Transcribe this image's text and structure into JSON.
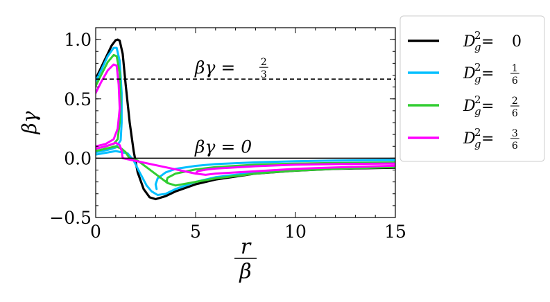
{
  "chart_data": {
    "type": "line",
    "title": "",
    "xlabel": {
      "numerator": "r",
      "denominator": "β"
    },
    "ylabel": "βγ",
    "xlim": [
      0,
      15
    ],
    "ylim": [
      -0.5,
      1.1
    ],
    "x_ticks": [
      {
        "value": 0,
        "label": "0"
      },
      {
        "value": 5,
        "label": "5"
      },
      {
        "value": 10,
        "label": "10"
      },
      {
        "value": 15,
        "label": "15"
      }
    ],
    "y_ticks": [
      {
        "value": -0.5,
        "label": "−0.5"
      },
      {
        "value": 0.0,
        "label": "0.0"
      },
      {
        "value": 0.5,
        "label": "0.5"
      },
      {
        "value": 1.0,
        "label": "1.0"
      }
    ],
    "grid": false,
    "legend_position": "outside-right",
    "reference_lines": [
      {
        "y": 0.6667,
        "style": "dashed",
        "label": {
          "prefix": "βγ = ",
          "num": "2",
          "den": "3"
        }
      },
      {
        "y": 0.0,
        "style": "solid",
        "label": {
          "prefix": "βγ = 0"
        }
      }
    ],
    "series": [
      {
        "legend": {
          "prefix": "D",
          "sub": "g",
          "sup": "2",
          "eq": " = ",
          "value": "0"
        },
        "color": "#000000",
        "points": [
          [
            0.0,
            0.67
          ],
          [
            0.2,
            0.74
          ],
          [
            0.4,
            0.81
          ],
          [
            0.6,
            0.88
          ],
          [
            0.8,
            0.95
          ],
          [
            1.0,
            0.995
          ],
          [
            1.1,
            1.0
          ],
          [
            1.2,
            0.99
          ],
          [
            1.35,
            0.88
          ],
          [
            1.5,
            0.62
          ],
          [
            1.7,
            0.3
          ],
          [
            1.9,
            0.06
          ],
          [
            2.1,
            -0.12
          ],
          [
            2.4,
            -0.26
          ],
          [
            2.7,
            -0.33
          ],
          [
            3.0,
            -0.345
          ],
          [
            3.5,
            -0.32
          ],
          [
            4.0,
            -0.28
          ],
          [
            5.0,
            -0.22
          ],
          [
            6.0,
            -0.18
          ],
          [
            8.0,
            -0.13
          ],
          [
            10.0,
            -0.105
          ],
          [
            12.0,
            -0.09
          ],
          [
            15.0,
            -0.08
          ]
        ]
      },
      {
        "legend": {
          "prefix": "D",
          "sub": "g",
          "sup": "2",
          "eq": " = ",
          "num": "1",
          "den": "6"
        },
        "color": "#00bfff",
        "points": [
          [
            0.0,
            0.65
          ],
          [
            0.3,
            0.75
          ],
          [
            0.6,
            0.86
          ],
          [
            0.9,
            0.93
          ],
          [
            1.05,
            0.93
          ],
          [
            1.2,
            0.82
          ],
          [
            1.3,
            0.55
          ],
          [
            1.3,
            0.3
          ],
          [
            1.25,
            0.15
          ],
          [
            1.0,
            0.09
          ],
          [
            0.6,
            0.07
          ],
          [
            0.0,
            0.05
          ],
          [
            0.0,
            0.03
          ],
          [
            1.0,
            0.06
          ],
          [
            1.6,
            0.04
          ],
          [
            1.9,
            -0.02
          ],
          [
            2.2,
            -0.12
          ],
          [
            2.55,
            -0.23
          ],
          [
            2.8,
            -0.28
          ],
          [
            3.1,
            -0.31
          ],
          [
            3.5,
            -0.3
          ],
          [
            4.0,
            -0.26
          ],
          [
            5.0,
            -0.2
          ],
          [
            6.0,
            -0.16
          ],
          [
            8.0,
            -0.12
          ],
          [
            10.0,
            -0.095
          ],
          [
            12.0,
            -0.083
          ],
          [
            15.0,
            -0.07
          ],
          [
            15.0,
            -0.015
          ],
          [
            12.0,
            -0.02
          ],
          [
            10.0,
            -0.025
          ],
          [
            8.0,
            -0.035
          ],
          [
            6.0,
            -0.05
          ],
          [
            5.0,
            -0.065
          ],
          [
            4.0,
            -0.09
          ],
          [
            3.5,
            -0.12
          ],
          [
            3.1,
            -0.17
          ],
          [
            3.0,
            -0.22
          ],
          [
            3.05,
            -0.26
          ]
        ]
      },
      {
        "legend": {
          "prefix": "D",
          "sub": "g",
          "sup": "2",
          "eq": " = ",
          "num": "2",
          "den": "6"
        },
        "color": "#32cd32",
        "points": [
          [
            0.0,
            0.61
          ],
          [
            0.3,
            0.71
          ],
          [
            0.6,
            0.81
          ],
          [
            0.9,
            0.87
          ],
          [
            1.05,
            0.86
          ],
          [
            1.2,
            0.72
          ],
          [
            1.25,
            0.48
          ],
          [
            1.2,
            0.3
          ],
          [
            1.1,
            0.16
          ],
          [
            0.9,
            0.12
          ],
          [
            0.5,
            0.1
          ],
          [
            0.0,
            0.08
          ],
          [
            0.0,
            0.06
          ],
          [
            0.5,
            0.08
          ],
          [
            1.0,
            0.1
          ],
          [
            1.3,
            0.08
          ],
          [
            1.5,
            0.05
          ],
          [
            1.65,
            0.01
          ],
          [
            1.7,
            0.0
          ],
          [
            2.1,
            -0.02
          ],
          [
            3.6,
            -0.21
          ],
          [
            4.0,
            -0.23
          ],
          [
            5.0,
            -0.2
          ],
          [
            6.0,
            -0.17
          ],
          [
            8.0,
            -0.13
          ],
          [
            10.0,
            -0.105
          ],
          [
            12.0,
            -0.09
          ],
          [
            15.0,
            -0.075
          ],
          [
            15.0,
            -0.035
          ],
          [
            12.0,
            -0.04
          ],
          [
            10.0,
            -0.045
          ],
          [
            8.0,
            -0.055
          ],
          [
            6.0,
            -0.075
          ],
          [
            5.0,
            -0.095
          ],
          [
            4.0,
            -0.13
          ],
          [
            3.6,
            -0.165
          ],
          [
            3.55,
            -0.19
          ],
          [
            3.6,
            -0.21
          ]
        ]
      },
      {
        "legend": {
          "prefix": "D",
          "sub": "g",
          "sup": "2",
          "eq": " = ",
          "num": "3",
          "den": "6"
        },
        "color": "#ff00ff",
        "points": [
          [
            0.0,
            0.55
          ],
          [
            0.3,
            0.65
          ],
          [
            0.6,
            0.74
          ],
          [
            0.9,
            0.79
          ],
          [
            1.05,
            0.78
          ],
          [
            1.15,
            0.62
          ],
          [
            1.2,
            0.42
          ],
          [
            1.1,
            0.25
          ],
          [
            0.9,
            0.16
          ],
          [
            0.5,
            0.12
          ],
          [
            0.0,
            0.1
          ],
          [
            0.0,
            0.08
          ],
          [
            0.5,
            0.1
          ],
          [
            1.0,
            0.13
          ],
          [
            1.2,
            0.11
          ],
          [
            1.3,
            0.06
          ],
          [
            1.35,
            0.0
          ],
          [
            5.0,
            -0.13
          ],
          [
            5.5,
            -0.14
          ],
          [
            6.0,
            -0.13
          ],
          [
            8.0,
            -0.11
          ],
          [
            10.0,
            -0.09
          ],
          [
            12.0,
            -0.078
          ],
          [
            15.0,
            -0.063
          ],
          [
            15.0,
            -0.045
          ],
          [
            12.0,
            -0.05
          ],
          [
            10.0,
            -0.055
          ],
          [
            8.0,
            -0.068
          ],
          [
            6.0,
            -0.088
          ],
          [
            5.5,
            -0.097
          ],
          [
            5.1,
            -0.11
          ],
          [
            5.0,
            -0.13
          ]
        ]
      }
    ]
  }
}
